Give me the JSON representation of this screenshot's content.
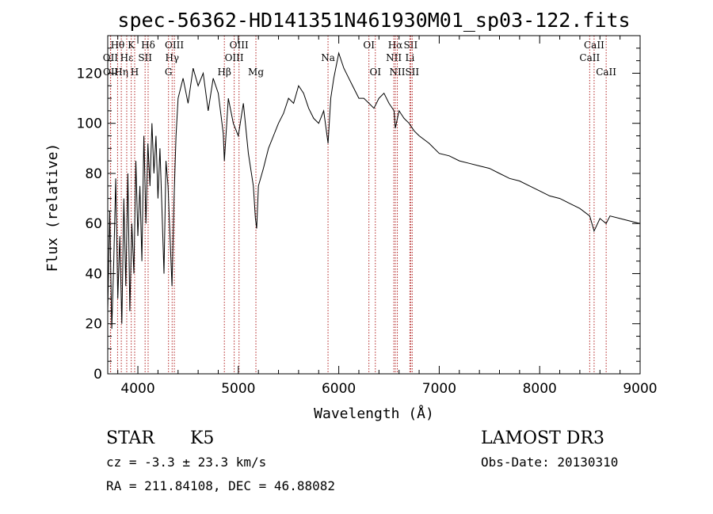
{
  "chart_data": {
    "type": "line",
    "title": "spec-56362-HD141351N461930M01_sp03-122.fits",
    "xlabel": "Wavelength (Å)",
    "ylabel": "Flux (relative)",
    "xlim": [
      3700,
      9000
    ],
    "ylim": [
      0,
      135
    ],
    "x_ticks": [
      4000,
      5000,
      6000,
      7000,
      8000,
      9000
    ],
    "y_ticks": [
      0,
      20,
      40,
      60,
      80,
      100,
      120
    ],
    "series": [
      {
        "color": "#000000",
        "x": [
          3700,
          3720,
          3740,
          3760,
          3780,
          3800,
          3820,
          3840,
          3860,
          3880,
          3900,
          3920,
          3940,
          3960,
          3980,
          4000,
          4020,
          4040,
          4060,
          4080,
          4100,
          4120,
          4140,
          4160,
          4180,
          4200,
          4220,
          4240,
          4260,
          4280,
          4300,
          4320,
          4340,
          4360,
          4380,
          4400,
          4450,
          4500,
          4550,
          4600,
          4650,
          4700,
          4750,
          4800,
          4850,
          4861,
          4900,
          4950,
          5000,
          5050,
          5100,
          5150,
          5170,
          5183,
          5200,
          5250,
          5300,
          5350,
          5400,
          5450,
          5500,
          5550,
          5600,
          5650,
          5700,
          5750,
          5800,
          5850,
          5893,
          5920,
          5950,
          6000,
          6050,
          6100,
          6150,
          6200,
          6250,
          6300,
          6350,
          6400,
          6450,
          6500,
          6550,
          6563,
          6600,
          6650,
          6700,
          6750,
          6800,
          6900,
          7000,
          7100,
          7200,
          7300,
          7400,
          7500,
          7600,
          7700,
          7800,
          7900,
          8000,
          8100,
          8200,
          8300,
          8400,
          8498,
          8542,
          8600,
          8662,
          8700,
          8800,
          8900,
          9000
        ],
        "values": [
          25,
          65,
          18,
          45,
          78,
          30,
          55,
          20,
          70,
          35,
          80,
          25,
          60,
          40,
          85,
          55,
          75,
          45,
          95,
          60,
          92,
          75,
          100,
          80,
          95,
          70,
          90,
          65,
          40,
          85,
          75,
          55,
          35,
          70,
          95,
          110,
          118,
          108,
          122,
          115,
          120,
          105,
          118,
          112,
          96,
          85,
          110,
          100,
          95,
          108,
          88,
          75,
          62,
          58,
          75,
          82,
          90,
          95,
          100,
          104,
          110,
          108,
          115,
          112,
          106,
          102,
          100,
          105,
          92,
          110,
          118,
          128,
          122,
          118,
          114,
          110,
          110,
          108,
          106,
          110,
          112,
          108,
          105,
          98,
          105,
          102,
          100,
          97,
          95,
          92,
          88,
          87,
          85,
          84,
          83,
          82,
          80,
          78,
          77,
          75,
          73,
          71,
          70,
          68,
          66,
          63,
          57,
          62,
          60,
          63,
          62,
          61,
          60
        ]
      }
    ],
    "line_markers": [
      {
        "label": "Hθ",
        "x": 3798,
        "row": 1
      },
      {
        "label": "OII",
        "x": 3727,
        "row": 2
      },
      {
        "label": "OII",
        "x": 3729,
        "row": 3
      },
      {
        "label": "Hη",
        "x": 3835,
        "row": 3
      },
      {
        "label": "Hε",
        "x": 3889,
        "row": 2
      },
      {
        "label": "K",
        "x": 3934,
        "row": 1
      },
      {
        "label": "H",
        "x": 3968,
        "row": 3
      },
      {
        "label": "SII",
        "x": 4072,
        "row": 2
      },
      {
        "label": "Hδ",
        "x": 4102,
        "row": 1
      },
      {
        "label": "OIII",
        "x": 4363,
        "row": 1
      },
      {
        "label": "Hγ",
        "x": 4341,
        "row": 2
      },
      {
        "label": "G",
        "x": 4305,
        "row": 3
      },
      {
        "label": "Hβ",
        "x": 4861,
        "row": 3
      },
      {
        "label": "OIII",
        "x": 5007,
        "row": 1
      },
      {
        "label": "OIII",
        "x": 4959,
        "row": 2
      },
      {
        "label": "Mg",
        "x": 5175,
        "row": 3
      },
      {
        "label": "Na",
        "x": 5893,
        "row": 2
      },
      {
        "label": "OI",
        "x": 6300,
        "row": 1
      },
      {
        "label": "OI",
        "x": 6364,
        "row": 3
      },
      {
        "label": "Hα",
        "x": 6563,
        "row": 1
      },
      {
        "label": "NII",
        "x": 6548,
        "row": 2
      },
      {
        "label": "NII",
        "x": 6583,
        "row": 3
      },
      {
        "label": "SII",
        "x": 6716,
        "row": 1
      },
      {
        "label": "Li",
        "x": 6708,
        "row": 2
      },
      {
        "label": "SII",
        "x": 6731,
        "row": 3
      },
      {
        "label": "CaII",
        "x": 8542,
        "row": 1
      },
      {
        "label": "CaII",
        "x": 8498,
        "row": 2
      },
      {
        "label": "CaII",
        "x": 8662,
        "row": 3
      }
    ]
  },
  "info": {
    "object_type": "STAR",
    "subclass": "K5",
    "survey": "LAMOST DR3",
    "redshift": "cz = -3.3 ± 23.3 km/s",
    "obs_date": "Obs-Date: 20130310",
    "coords": "RA = 211.84108, DEC =  46.88082"
  }
}
